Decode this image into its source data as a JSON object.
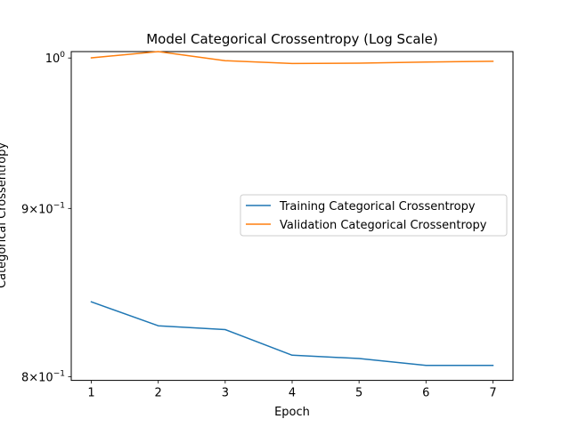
{
  "chart_data": {
    "type": "line",
    "title": "Model Categorical Crossentropy (Log Scale)",
    "xlabel": "Epoch",
    "ylabel": "Categorical Crossentropy",
    "yscale": "log",
    "x": [
      1,
      2,
      3,
      4,
      5,
      6,
      7
    ],
    "xlim": [
      0.7,
      7.3
    ],
    "ylim": [
      0.7979,
      1.0045
    ],
    "x_ticks": [
      1,
      2,
      3,
      4,
      5,
      6,
      7
    ],
    "y_ticks": [
      {
        "value": 0.8,
        "base": "8",
        "mult": "×",
        "pow_base": "10",
        "exp": "−1"
      },
      {
        "value": 0.9,
        "base": "9",
        "mult": "×",
        "pow_base": "10",
        "exp": "−1"
      },
      {
        "value": 1.0,
        "base": "",
        "mult": "",
        "pow_base": "10",
        "exp": "0"
      }
    ],
    "grid": false,
    "legend_position": "center-right",
    "series": [
      {
        "name": "Training Categorical Crossentropy",
        "color": "#1f77b4",
        "values": [
          0.843,
          0.829,
          0.8268,
          0.8121,
          0.8102,
          0.8063,
          0.8063
        ]
      },
      {
        "name": "Validation Categorical Crossentropy",
        "color": "#ff7f0e",
        "values": [
          1.0001,
          1.0045,
          0.9981,
          0.9962,
          0.9964,
          0.9972,
          0.9977
        ]
      }
    ]
  }
}
